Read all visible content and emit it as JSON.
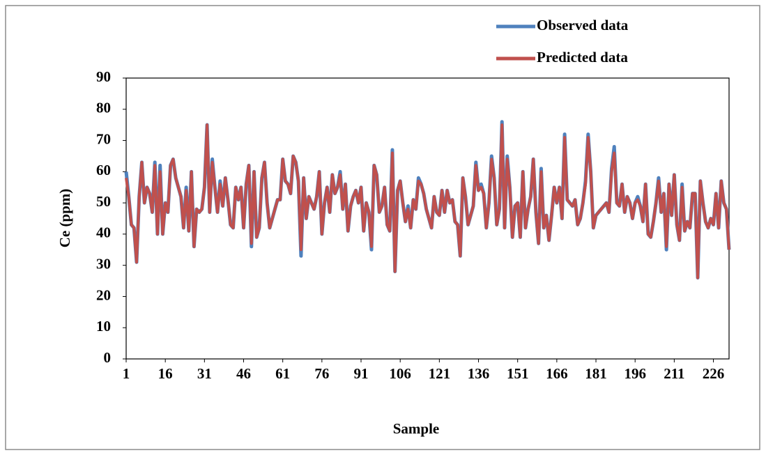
{
  "chart_data": {
    "type": "line",
    "x_label": "Sample",
    "y_label": "Ce (ppm)",
    "xlim": [
      1,
      232
    ],
    "xticks": [
      1,
      16,
      31,
      46,
      61,
      76,
      91,
      106,
      121,
      136,
      151,
      166,
      181,
      196,
      211,
      226
    ],
    "ylim": [
      0,
      90
    ],
    "yticks": [
      0,
      10,
      20,
      30,
      40,
      50,
      60,
      70,
      80,
      90
    ],
    "legend": "top-right",
    "x": [
      1,
      2,
      3,
      4,
      5,
      6,
      7,
      8,
      9,
      10,
      11,
      12,
      13,
      14,
      15,
      16,
      17,
      18,
      19,
      20,
      21,
      22,
      23,
      24,
      25,
      26,
      27,
      28,
      29,
      30,
      31,
      32,
      33,
      34,
      35,
      36,
      37,
      38,
      39,
      40,
      41,
      42,
      43,
      44,
      45,
      46,
      47,
      48,
      49,
      50,
      51,
      52,
      53,
      54,
      55,
      56,
      57,
      58,
      59,
      60,
      61,
      62,
      63,
      64,
      65,
      66,
      67,
      68,
      69,
      70,
      71,
      72,
      73,
      74,
      75,
      76,
      77,
      78,
      79,
      80,
      81,
      82,
      83,
      84,
      85,
      86,
      87,
      88,
      89,
      90,
      91,
      92,
      93,
      94,
      95,
      96,
      97,
      98,
      99,
      100,
      101,
      102,
      103,
      104,
      105,
      106,
      107,
      108,
      109,
      110,
      111,
      112,
      113,
      114,
      115,
      116,
      117,
      118,
      119,
      120,
      121,
      122,
      123,
      124,
      125,
      126,
      127,
      128,
      129,
      130,
      131,
      132,
      133,
      134,
      135,
      136,
      137,
      138,
      139,
      140,
      141,
      142,
      143,
      144,
      145,
      146,
      147,
      148,
      149,
      150,
      151,
      152,
      153,
      154,
      155,
      156,
      157,
      158,
      159,
      160,
      161,
      162,
      163,
      164,
      165,
      166,
      167,
      168,
      169,
      170,
      171,
      172,
      173,
      174,
      175,
      176,
      177,
      178,
      179,
      180,
      181,
      182,
      183,
      184,
      185,
      186,
      187,
      188,
      189,
      190,
      191,
      192,
      193,
      194,
      195,
      196,
      197,
      198,
      199,
      200,
      201,
      202,
      203,
      204,
      205,
      206,
      207,
      208,
      209,
      210,
      211,
      212,
      213,
      214,
      215,
      216,
      217,
      218,
      219,
      220,
      221,
      222,
      223,
      224,
      225,
      226,
      227,
      228,
      229,
      230,
      231,
      232
    ],
    "series": [
      {
        "name": "Observed data",
        "color": "#4f81bd",
        "values": [
          60,
          52,
          43,
          42,
          31,
          52,
          63,
          50,
          55,
          53,
          47,
          63,
          40,
          62,
          40,
          50,
          47,
          62,
          64,
          58,
          55,
          52,
          42,
          55,
          41,
          60,
          36,
          48,
          47,
          48,
          55,
          75,
          47,
          64,
          55,
          47,
          57,
          49,
          58,
          51,
          43,
          42,
          55,
          51,
          55,
          42,
          56,
          62,
          36,
          60,
          39,
          42,
          58,
          63,
          50,
          42,
          45,
          48,
          51,
          51,
          64,
          57,
          56,
          53,
          65,
          63,
          57,
          33,
          58,
          45,
          52,
          50,
          48,
          52,
          60,
          40,
          50,
          55,
          47,
          59,
          53,
          55,
          60,
          48,
          56,
          41,
          49,
          52,
          54,
          50,
          55,
          41,
          50,
          47,
          35,
          62,
          59,
          47,
          49,
          55,
          43,
          41,
          67,
          28,
          54,
          57,
          50,
          44,
          49,
          42,
          51,
          48,
          58,
          56,
          53,
          48,
          45,
          42,
          52,
          47,
          46,
          54,
          47,
          54,
          50,
          51,
          44,
          43,
          33,
          58,
          52,
          43,
          46,
          49,
          63,
          54,
          56,
          53,
          42,
          50,
          65,
          58,
          43,
          48,
          76,
          42,
          65,
          55,
          39,
          49,
          50,
          39,
          60,
          42,
          48,
          52,
          64,
          47,
          37,
          61,
          42,
          46,
          38,
          46,
          55,
          50,
          55,
          45,
          72,
          51,
          50,
          49,
          51,
          43,
          45,
          50,
          57,
          72,
          60,
          42,
          46,
          47,
          48,
          49,
          50,
          47,
          61,
          68,
          50,
          49,
          56,
          47,
          52,
          50,
          45,
          50,
          52,
          49,
          44,
          56,
          40,
          39,
          44,
          50,
          58,
          47,
          53,
          35,
          56,
          46,
          59,
          43,
          38,
          56,
          41,
          44,
          42,
          53,
          53,
          26,
          57,
          50,
          44,
          42,
          45,
          43,
          53,
          42,
          57,
          50,
          48,
          35
        ]
      },
      {
        "name": "Predicted data",
        "color": "#c0504d",
        "values": [
          58,
          52,
          43,
          42,
          31,
          52,
          63,
          50,
          55,
          53,
          47,
          62,
          40,
          60,
          40,
          50,
          47,
          62,
          64,
          58,
          55,
          52,
          42,
          54,
          41,
          60,
          36,
          48,
          47,
          48,
          55,
          75,
          47,
          63,
          55,
          47,
          56,
          49,
          58,
          51,
          43,
          42,
          55,
          51,
          55,
          42,
          56,
          62,
          37,
          60,
          39,
          42,
          58,
          63,
          50,
          42,
          45,
          48,
          51,
          51,
          64,
          57,
          56,
          53,
          65,
          63,
          57,
          35,
          58,
          45,
          52,
          50,
          48,
          52,
          60,
          40,
          50,
          55,
          47,
          59,
          53,
          55,
          59,
          48,
          56,
          41,
          49,
          52,
          54,
          50,
          55,
          41,
          50,
          47,
          36,
          62,
          59,
          47,
          49,
          55,
          43,
          41,
          66,
          28,
          54,
          57,
          50,
          44,
          48,
          42,
          51,
          48,
          57,
          56,
          53,
          48,
          45,
          42,
          52,
          47,
          46,
          54,
          47,
          54,
          50,
          51,
          44,
          43,
          33,
          58,
          52,
          43,
          46,
          49,
          62,
          54,
          55,
          53,
          42,
          50,
          64,
          58,
          43,
          48,
          75,
          42,
          64,
          55,
          39,
          49,
          50,
          39,
          60,
          42,
          48,
          52,
          64,
          47,
          37,
          60,
          42,
          46,
          38,
          46,
          55,
          50,
          55,
          45,
          71,
          51,
          50,
          49,
          51,
          43,
          45,
          50,
          56,
          71,
          60,
          42,
          46,
          47,
          48,
          49,
          50,
          47,
          60,
          66,
          50,
          49,
          56,
          47,
          52,
          50,
          45,
          50,
          51,
          49,
          44,
          56,
          40,
          39,
          44,
          50,
          57,
          47,
          53,
          36,
          56,
          46,
          59,
          43,
          38,
          55,
          41,
          44,
          42,
          53,
          53,
          26,
          57,
          50,
          44,
          42,
          45,
          43,
          53,
          42,
          57,
          50,
          48,
          35
        ]
      }
    ]
  }
}
